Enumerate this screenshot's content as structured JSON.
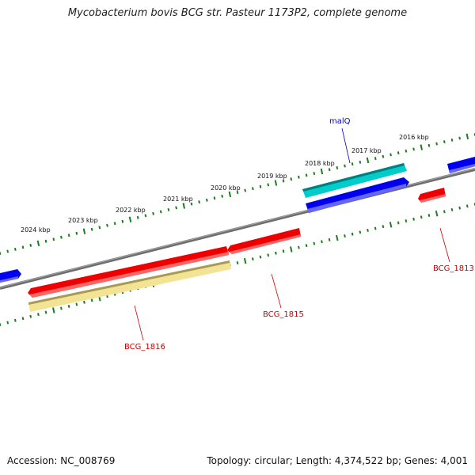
{
  "header": {
    "title": "Mycobacterium bovis BCG str. Pasteur 1173P2, complete genome"
  },
  "footer": {
    "accession": "Accession: NC_008769",
    "summary": "Topology: circular; Length: 4,374,522 bp; Genes: 4,001"
  },
  "kbp_labels": [
    "2016 kbp",
    "2017 kbp",
    "2018 kbp",
    "2019 kbp",
    "2020 kbp",
    "2021 kbp",
    "2022 kbp",
    "2023 kbp",
    "2024 kbp"
  ],
  "gene_labels": {
    "malQ": "malQ",
    "bcg1813": "BCG_1813",
    "bcg1815": "BCG_1815",
    "bcg1816": "BCG_1816"
  },
  "colors": {
    "forward": "#0000ee",
    "reverse": "#ee0000",
    "rna": "#00c4c4",
    "pseudo": "#f2e494",
    "backbone": "#808080",
    "ticks": "#228822",
    "label_red": "#cc0000",
    "label_blue": "#0000cc"
  }
}
